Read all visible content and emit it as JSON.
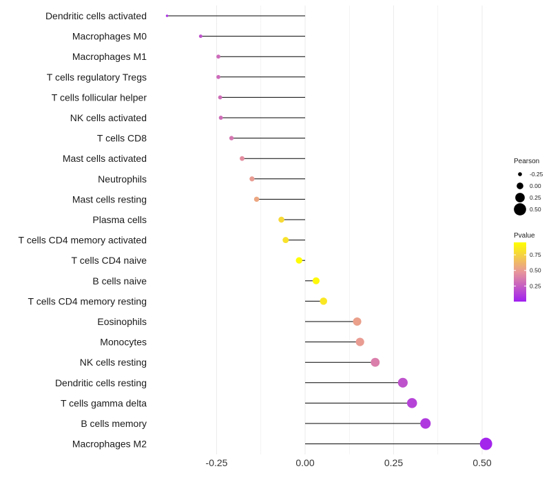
{
  "chart_data": {
    "type": "lollipop",
    "title": "",
    "xlabel": "",
    "ylabel": "",
    "xlim": [
      -0.42,
      0.56
    ],
    "x_ticks": [
      -0.25,
      0.0,
      0.25,
      0.5
    ],
    "x_tick_labels": [
      "-0.25",
      "0.00",
      "0.25",
      "0.50"
    ],
    "grid": "vertical",
    "categories": [
      "Dendritic cells activated",
      "Macrophages M0",
      "Macrophages M1",
      "T cells regulatory  Tregs",
      "T cells follicular helper",
      "NK cells activated",
      "T cells CD8",
      "Mast cells activated",
      "Neutrophils",
      "Mast cells resting",
      "Plasma cells",
      "T cells CD4 memory activated",
      "T cells CD4 naive",
      "B cells naive",
      "T cells CD4 memory resting",
      "Eosinophils",
      "Monocytes",
      "NK cells resting",
      "Dendritic cells resting",
      "T cells gamma delta",
      "B cells memory",
      "Macrophages M2"
    ],
    "series": [
      {
        "name": "Pearson",
        "values": [
          -0.39,
          -0.295,
          -0.245,
          -0.245,
          -0.24,
          -0.238,
          -0.208,
          -0.178,
          -0.15,
          -0.137,
          -0.067,
          -0.055,
          -0.017,
          0.031,
          0.052,
          0.147,
          0.155,
          0.198,
          0.276,
          0.302,
          0.34,
          0.511
        ]
      },
      {
        "name": "Pvalue",
        "values": [
          0.08,
          0.2,
          0.3,
          0.3,
          0.31,
          0.31,
          0.35,
          0.44,
          0.5,
          0.55,
          0.78,
          0.82,
          0.94,
          0.92,
          0.84,
          0.52,
          0.5,
          0.38,
          0.2,
          0.14,
          0.1,
          0.02
        ]
      }
    ],
    "legend": {
      "placement": "right",
      "size_title": "Pearson",
      "size_entries": [
        {
          "label": "-0.25",
          "value": -0.25
        },
        {
          "label": "0.00",
          "value": 0.0
        },
        {
          "label": "0.25",
          "value": 0.25
        },
        {
          "label": "0.50",
          "value": 0.5
        }
      ],
      "color_title": "Pvalue",
      "color_ticks": [
        {
          "label": "0.75",
          "value": 0.75
        },
        {
          "label": "0.50",
          "value": 0.5
        },
        {
          "label": "0.25",
          "value": 0.25
        }
      ],
      "color_range": [
        0.0,
        0.95
      ],
      "color_low": "#a020f0",
      "color_mid": "#e8969a",
      "color_high": "#ffff00"
    },
    "colors": {
      "grid": "#ebebeb",
      "segment": "#000000"
    }
  }
}
